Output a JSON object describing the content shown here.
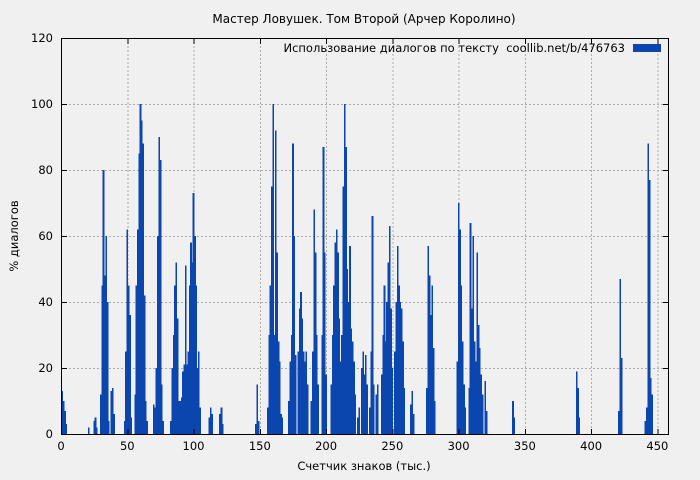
{
  "header": {
    "title": "Мастер Ловушек. Том Второй (Арчер Королино)"
  },
  "legend": {
    "label": "Использование диалогов по тексту  coollib.net/b/476763"
  },
  "colors": {
    "bar": "#0b46af",
    "grid": "#ababab",
    "axis": "#000000",
    "background": "#f0f0f0",
    "text": "#000000"
  },
  "chart_data": {
    "type": "bar",
    "title": "Мастер Ловушек. Том Второй (Арчер Королино)",
    "xlabel": "Счетчик знаков (тыс.)",
    "ylabel": "% диалогов",
    "legend_label": "Использование диалогов по тексту  coollib.net/b/476763",
    "legend_position": "top-right-inside",
    "grid": true,
    "xlim": [
      0,
      458
    ],
    "ylim": [
      0,
      120
    ],
    "xticks": [
      0,
      50,
      100,
      150,
      200,
      250,
      300,
      350,
      400,
      450
    ],
    "yticks": [
      0,
      20,
      40,
      60,
      80,
      100,
      120
    ],
    "series": [
      {
        "name": "Использование диалогов по тексту coollib.net/b/476763",
        "points": [
          [
            1,
            13
          ],
          [
            2,
            10
          ],
          [
            3,
            7
          ],
          [
            4,
            3
          ],
          [
            21,
            2
          ],
          [
            25,
            4
          ],
          [
            26,
            5
          ],
          [
            27,
            2
          ],
          [
            30,
            12
          ],
          [
            31,
            45
          ],
          [
            32,
            80
          ],
          [
            33,
            48
          ],
          [
            34,
            60
          ],
          [
            35,
            40
          ],
          [
            36,
            4
          ],
          [
            38,
            13
          ],
          [
            39,
            14
          ],
          [
            40,
            6
          ],
          [
            48,
            4
          ],
          [
            49,
            25
          ],
          [
            50,
            62
          ],
          [
            51,
            45
          ],
          [
            52,
            36
          ],
          [
            53,
            5
          ],
          [
            56,
            12
          ],
          [
            57,
            45
          ],
          [
            58,
            62
          ],
          [
            59,
            85
          ],
          [
            60,
            100
          ],
          [
            61,
            95
          ],
          [
            62,
            88
          ],
          [
            63,
            42
          ],
          [
            64,
            10
          ],
          [
            65,
            4
          ],
          [
            70,
            9
          ],
          [
            71,
            8
          ],
          [
            72,
            20
          ],
          [
            73,
            60
          ],
          [
            74,
            90
          ],
          [
            75,
            83
          ],
          [
            76,
            15
          ],
          [
            77,
            4
          ],
          [
            83,
            4
          ],
          [
            84,
            20
          ],
          [
            85,
            30
          ],
          [
            86,
            45
          ],
          [
            87,
            52
          ],
          [
            88,
            35
          ],
          [
            89,
            10
          ],
          [
            90,
            10
          ],
          [
            91,
            11
          ],
          [
            92,
            19
          ],
          [
            93,
            21
          ],
          [
            94,
            51
          ],
          [
            95,
            21
          ],
          [
            96,
            25
          ],
          [
            97,
            45
          ],
          [
            98,
            58
          ],
          [
            99,
            52
          ],
          [
            100,
            73
          ],
          [
            101,
            60
          ],
          [
            102,
            45
          ],
          [
            103,
            20
          ],
          [
            104,
            25
          ],
          [
            105,
            8
          ],
          [
            112,
            5
          ],
          [
            113,
            8
          ],
          [
            114,
            6
          ],
          [
            120,
            6
          ],
          [
            121,
            8
          ],
          [
            122,
            3
          ],
          [
            147,
            3
          ],
          [
            148,
            15
          ],
          [
            149,
            4
          ],
          [
            156,
            8
          ],
          [
            157,
            30
          ],
          [
            158,
            45
          ],
          [
            159,
            75
          ],
          [
            160,
            100
          ],
          [
            161,
            30
          ],
          [
            162,
            92
          ],
          [
            163,
            55
          ],
          [
            164,
            28
          ],
          [
            165,
            22
          ],
          [
            166,
            6
          ],
          [
            167,
            5
          ],
          [
            172,
            10
          ],
          [
            173,
            22
          ],
          [
            174,
            30
          ],
          [
            175,
            88
          ],
          [
            176,
            60
          ],
          [
            177,
            24
          ],
          [
            179,
            25
          ],
          [
            180,
            38
          ],
          [
            181,
            43
          ],
          [
            182,
            35
          ],
          [
            183,
            25
          ],
          [
            184,
            22
          ],
          [
            185,
            25
          ],
          [
            186,
            15
          ],
          [
            189,
            10
          ],
          [
            190,
            25
          ],
          [
            191,
            68
          ],
          [
            192,
            55
          ],
          [
            193,
            30
          ],
          [
            194,
            15
          ],
          [
            197,
            30
          ],
          [
            198,
            87
          ],
          [
            199,
            55
          ],
          [
            200,
            18
          ],
          [
            204,
            15
          ],
          [
            205,
            30
          ],
          [
            206,
            45
          ],
          [
            207,
            58
          ],
          [
            208,
            62
          ],
          [
            209,
            55
          ],
          [
            210,
            35
          ],
          [
            211,
            22
          ],
          [
            212,
            30
          ],
          [
            213,
            75
          ],
          [
            214,
            100
          ],
          [
            215,
            87
          ],
          [
            216,
            50
          ],
          [
            217,
            40
          ],
          [
            218,
            57
          ],
          [
            219,
            32
          ],
          [
            220,
            28
          ],
          [
            221,
            22
          ],
          [
            222,
            12
          ],
          [
            224,
            5
          ],
          [
            225,
            8
          ],
          [
            227,
            20
          ],
          [
            228,
            25
          ],
          [
            229,
            18
          ],
          [
            230,
            24
          ],
          [
            231,
            15
          ],
          [
            233,
            8
          ],
          [
            234,
            25
          ],
          [
            235,
            66
          ],
          [
            236,
            15
          ],
          [
            238,
            12
          ],
          [
            239,
            15
          ],
          [
            242,
            18
          ],
          [
            243,
            30
          ],
          [
            244,
            45
          ],
          [
            245,
            28
          ],
          [
            246,
            40
          ],
          [
            247,
            52
          ],
          [
            248,
            63
          ],
          [
            249,
            38
          ],
          [
            250,
            20
          ],
          [
            252,
            25
          ],
          [
            253,
            40
          ],
          [
            254,
            57
          ],
          [
            255,
            45
          ],
          [
            256,
            40
          ],
          [
            257,
            38
          ],
          [
            258,
            28
          ],
          [
            259,
            14
          ],
          [
            264,
            9
          ],
          [
            265,
            13
          ],
          [
            266,
            6
          ],
          [
            276,
            14
          ],
          [
            277,
            57
          ],
          [
            278,
            48
          ],
          [
            279,
            36
          ],
          [
            280,
            45
          ],
          [
            281,
            26
          ],
          [
            282,
            10
          ],
          [
            299,
            22
          ],
          [
            300,
            70
          ],
          [
            301,
            62
          ],
          [
            302,
            45
          ],
          [
            303,
            28
          ],
          [
            304,
            15
          ],
          [
            305,
            8
          ],
          [
            308,
            14
          ],
          [
            309,
            64
          ],
          [
            310,
            38
          ],
          [
            311,
            60
          ],
          [
            312,
            28
          ],
          [
            313,
            22
          ],
          [
            314,
            55
          ],
          [
            315,
            33
          ],
          [
            316,
            26
          ],
          [
            317,
            18
          ],
          [
            318,
            12
          ],
          [
            320,
            16
          ],
          [
            321,
            7
          ],
          [
            341,
            10
          ],
          [
            342,
            5
          ],
          [
            389,
            19
          ],
          [
            390,
            14
          ],
          [
            391,
            5
          ],
          [
            421,
            7
          ],
          [
            422,
            47
          ],
          [
            423,
            23
          ],
          [
            441,
            4
          ],
          [
            442,
            8
          ],
          [
            443,
            88
          ],
          [
            444,
            77
          ],
          [
            445,
            17
          ],
          [
            446,
            12
          ]
        ]
      }
    ]
  }
}
